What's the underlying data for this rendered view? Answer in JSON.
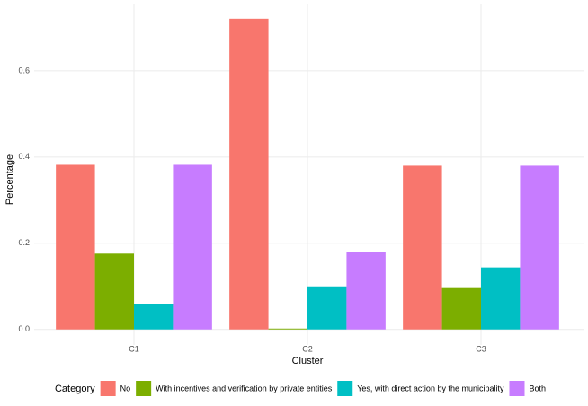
{
  "chart_data": {
    "type": "bar",
    "x_label": "Cluster",
    "y_label": "Percentage",
    "categories": [
      "C1",
      "C2",
      "C3"
    ],
    "legend_title": "Category",
    "series": [
      {
        "name": "No",
        "color": "#F8766D",
        "values": [
          0.382,
          0.721,
          0.38
        ]
      },
      {
        "name": "With incentives and verification by private entities",
        "color": "#7CAE00",
        "values": [
          0.176,
          0.002,
          0.096
        ]
      },
      {
        "name": "Yes, with direct action by the municipality",
        "color": "#00BFC4",
        "values": [
          0.059,
          0.1,
          0.144
        ]
      },
      {
        "name": "Both",
        "color": "#C77CFF",
        "values": [
          0.382,
          0.18,
          0.38
        ]
      }
    ],
    "ylim": [
      -0.036,
      0.754
    ],
    "yticks": [
      {
        "value": 0,
        "label": "0.0"
      },
      0.2,
      0.4,
      0.6
    ],
    "grid": true,
    "legend_position": "bottom"
  }
}
